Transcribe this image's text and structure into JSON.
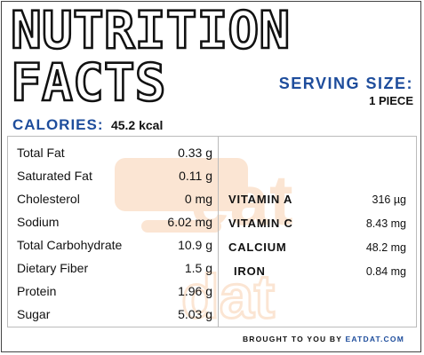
{
  "title": {
    "line1": "NUTRITION",
    "line2": "FACTS"
  },
  "serving": {
    "label": "SERVING SIZE:",
    "value": "1 PIECE"
  },
  "calories": {
    "label": "CALORIES:",
    "value": "45.2 kcal"
  },
  "nutrients": [
    {
      "name": "Total Fat",
      "value": "0.33 g"
    },
    {
      "name": "Saturated Fat",
      "value": "0.11 g"
    },
    {
      "name": "Cholesterol",
      "value": "0 mg"
    },
    {
      "name": "Sodium",
      "value": "6.02 mg"
    },
    {
      "name": "Total Carbohydrate",
      "value": "10.9 g"
    },
    {
      "name": "Dietary Fiber",
      "value": "1.5 g"
    },
    {
      "name": "Protein",
      "value": "1.96 g"
    },
    {
      "name": "Sugar",
      "value": "5.03 g"
    }
  ],
  "vitamins": [
    {
      "name": "VITAMIN A",
      "value": "316 µg"
    },
    {
      "name": "VITAMIN C",
      "value": "8.43 mg"
    },
    {
      "name": "CALCIUM",
      "value": "48.2 mg"
    },
    {
      "name": "IRON",
      "value": "0.84 mg"
    }
  ],
  "watermark": {
    "text1": "eat",
    "text2": "dat",
    "color": "#f08c3a"
  },
  "footer": {
    "prefix": "BROUGHT TO YOU BY ",
    "brand": "EATDAT.COM"
  },
  "colors": {
    "accent": "#1e4d9c",
    "text": "#111111",
    "border": "#bbbbbb"
  }
}
